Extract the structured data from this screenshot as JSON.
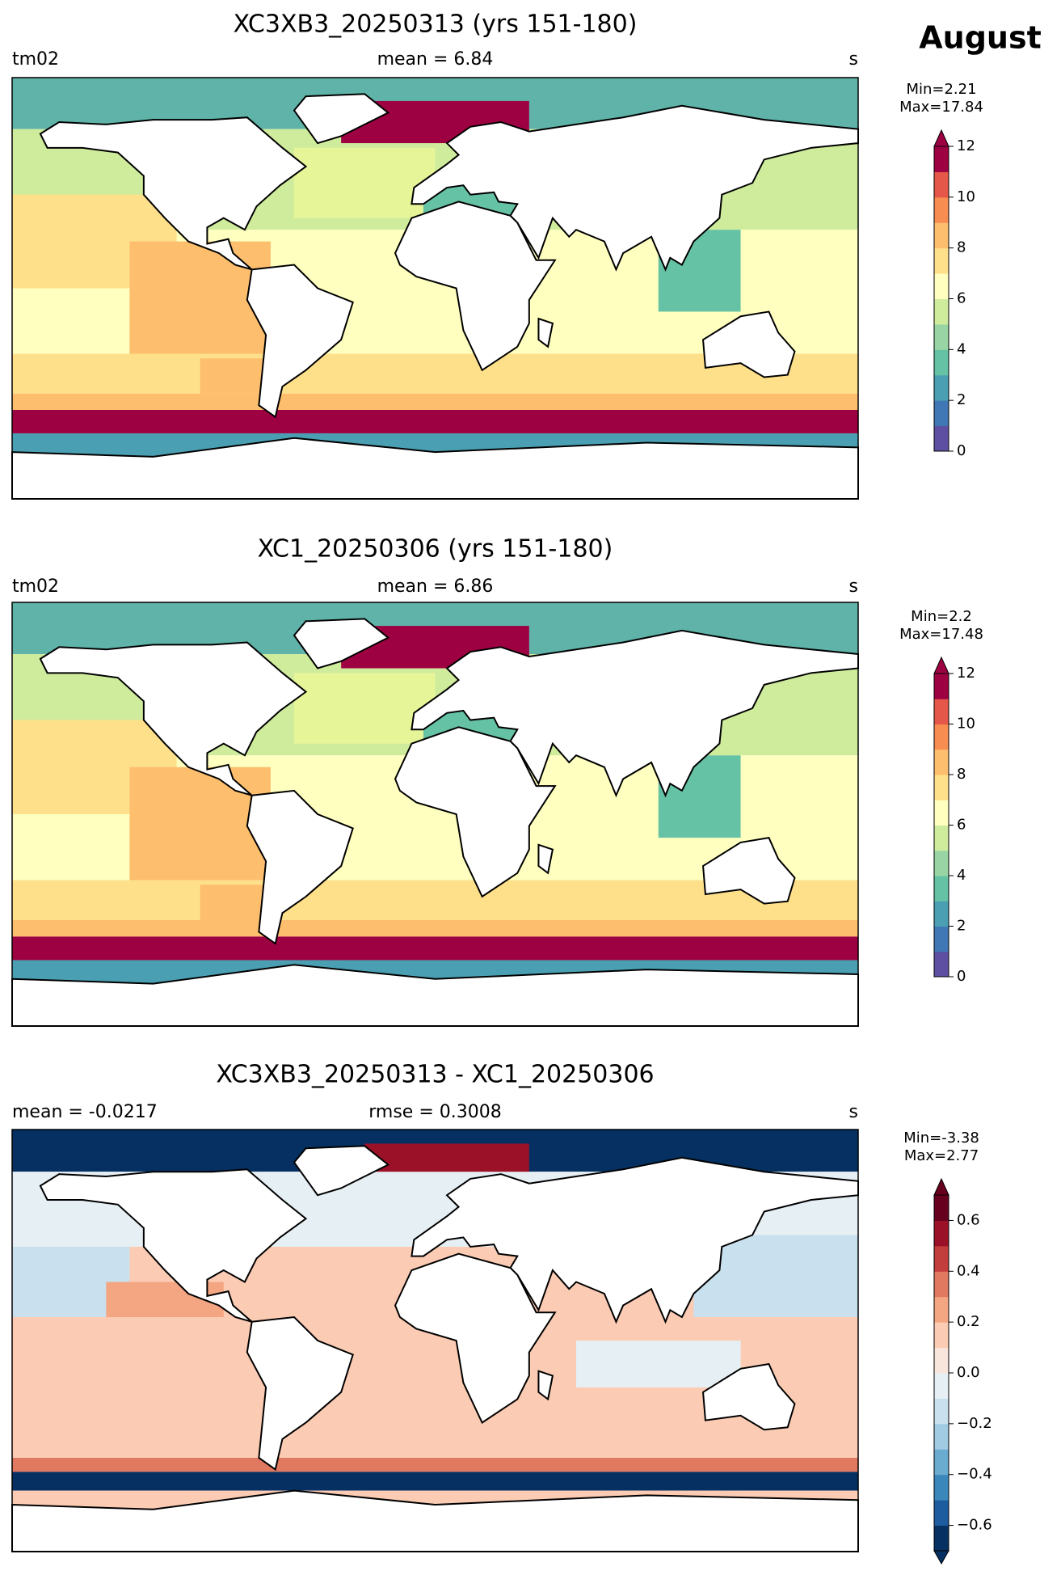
{
  "figure_title": "August",
  "panels": [
    {
      "title": "XC3XB3_20250313 (yrs 151-180)",
      "left": "tm02",
      "center": "mean = 6.84",
      "right": "s",
      "minmax": [
        "Min=2.21",
        "Max=17.84"
      ],
      "colorbar": {
        "lim": [
          0,
          12
        ],
        "ticks": [
          0,
          2,
          4,
          6,
          8,
          10,
          12
        ],
        "extend": "max",
        "colors": [
          "#5e4fa2",
          "#3f78b5",
          "#4a9fb3",
          "#66c2a5",
          "#99d5a4",
          "#cfec9d",
          "#ffffbf",
          "#fee08b",
          "#fdbe6e",
          "#f88d52",
          "#e55748",
          "#9e0142"
        ]
      }
    },
    {
      "title": "XC1_20250306 (yrs 151-180)",
      "left": "tm02",
      "center": "mean = 6.86",
      "right": "s",
      "minmax": [
        "Min=2.2",
        "Max=17.48"
      ],
      "colorbar": {
        "lim": [
          0,
          12
        ],
        "ticks": [
          0,
          2,
          4,
          6,
          8,
          10,
          12
        ],
        "extend": "max",
        "colors": [
          "#5e4fa2",
          "#3f78b5",
          "#4a9fb3",
          "#66c2a5",
          "#99d5a4",
          "#cfec9d",
          "#ffffbf",
          "#fee08b",
          "#fdbe6e",
          "#f88d52",
          "#e55748",
          "#9e0142"
        ]
      }
    },
    {
      "title": "XC3XB3_20250313 - XC1_20250306",
      "left": "mean = -0.0217",
      "center": "rmse = 0.3008",
      "right": "s",
      "minmax": [
        "Min=-3.38",
        "Max=2.77"
      ],
      "colorbar": {
        "lim": [
          -0.7,
          0.7
        ],
        "ticks": [
          {
            "value": -0.6,
            "label": "−0.6"
          },
          {
            "value": -0.4,
            "label": "−0.4"
          },
          {
            "value": -0.2,
            "label": "−0.2"
          },
          {
            "value": 0,
            "label": "0.0"
          },
          0.2,
          0.4,
          0.6
        ],
        "extend": "both",
        "colors": [
          "#053061",
          "#1c5c9f",
          "#3a87bc",
          "#6aabd0",
          "#a1cbe2",
          "#c9e0ee",
          "#e6eff4",
          "#f8e5dc",
          "#fbcbb4",
          "#f4a683",
          "#e17860",
          "#c13e3d",
          "#9b1128",
          "#67001f"
        ]
      }
    }
  ]
}
